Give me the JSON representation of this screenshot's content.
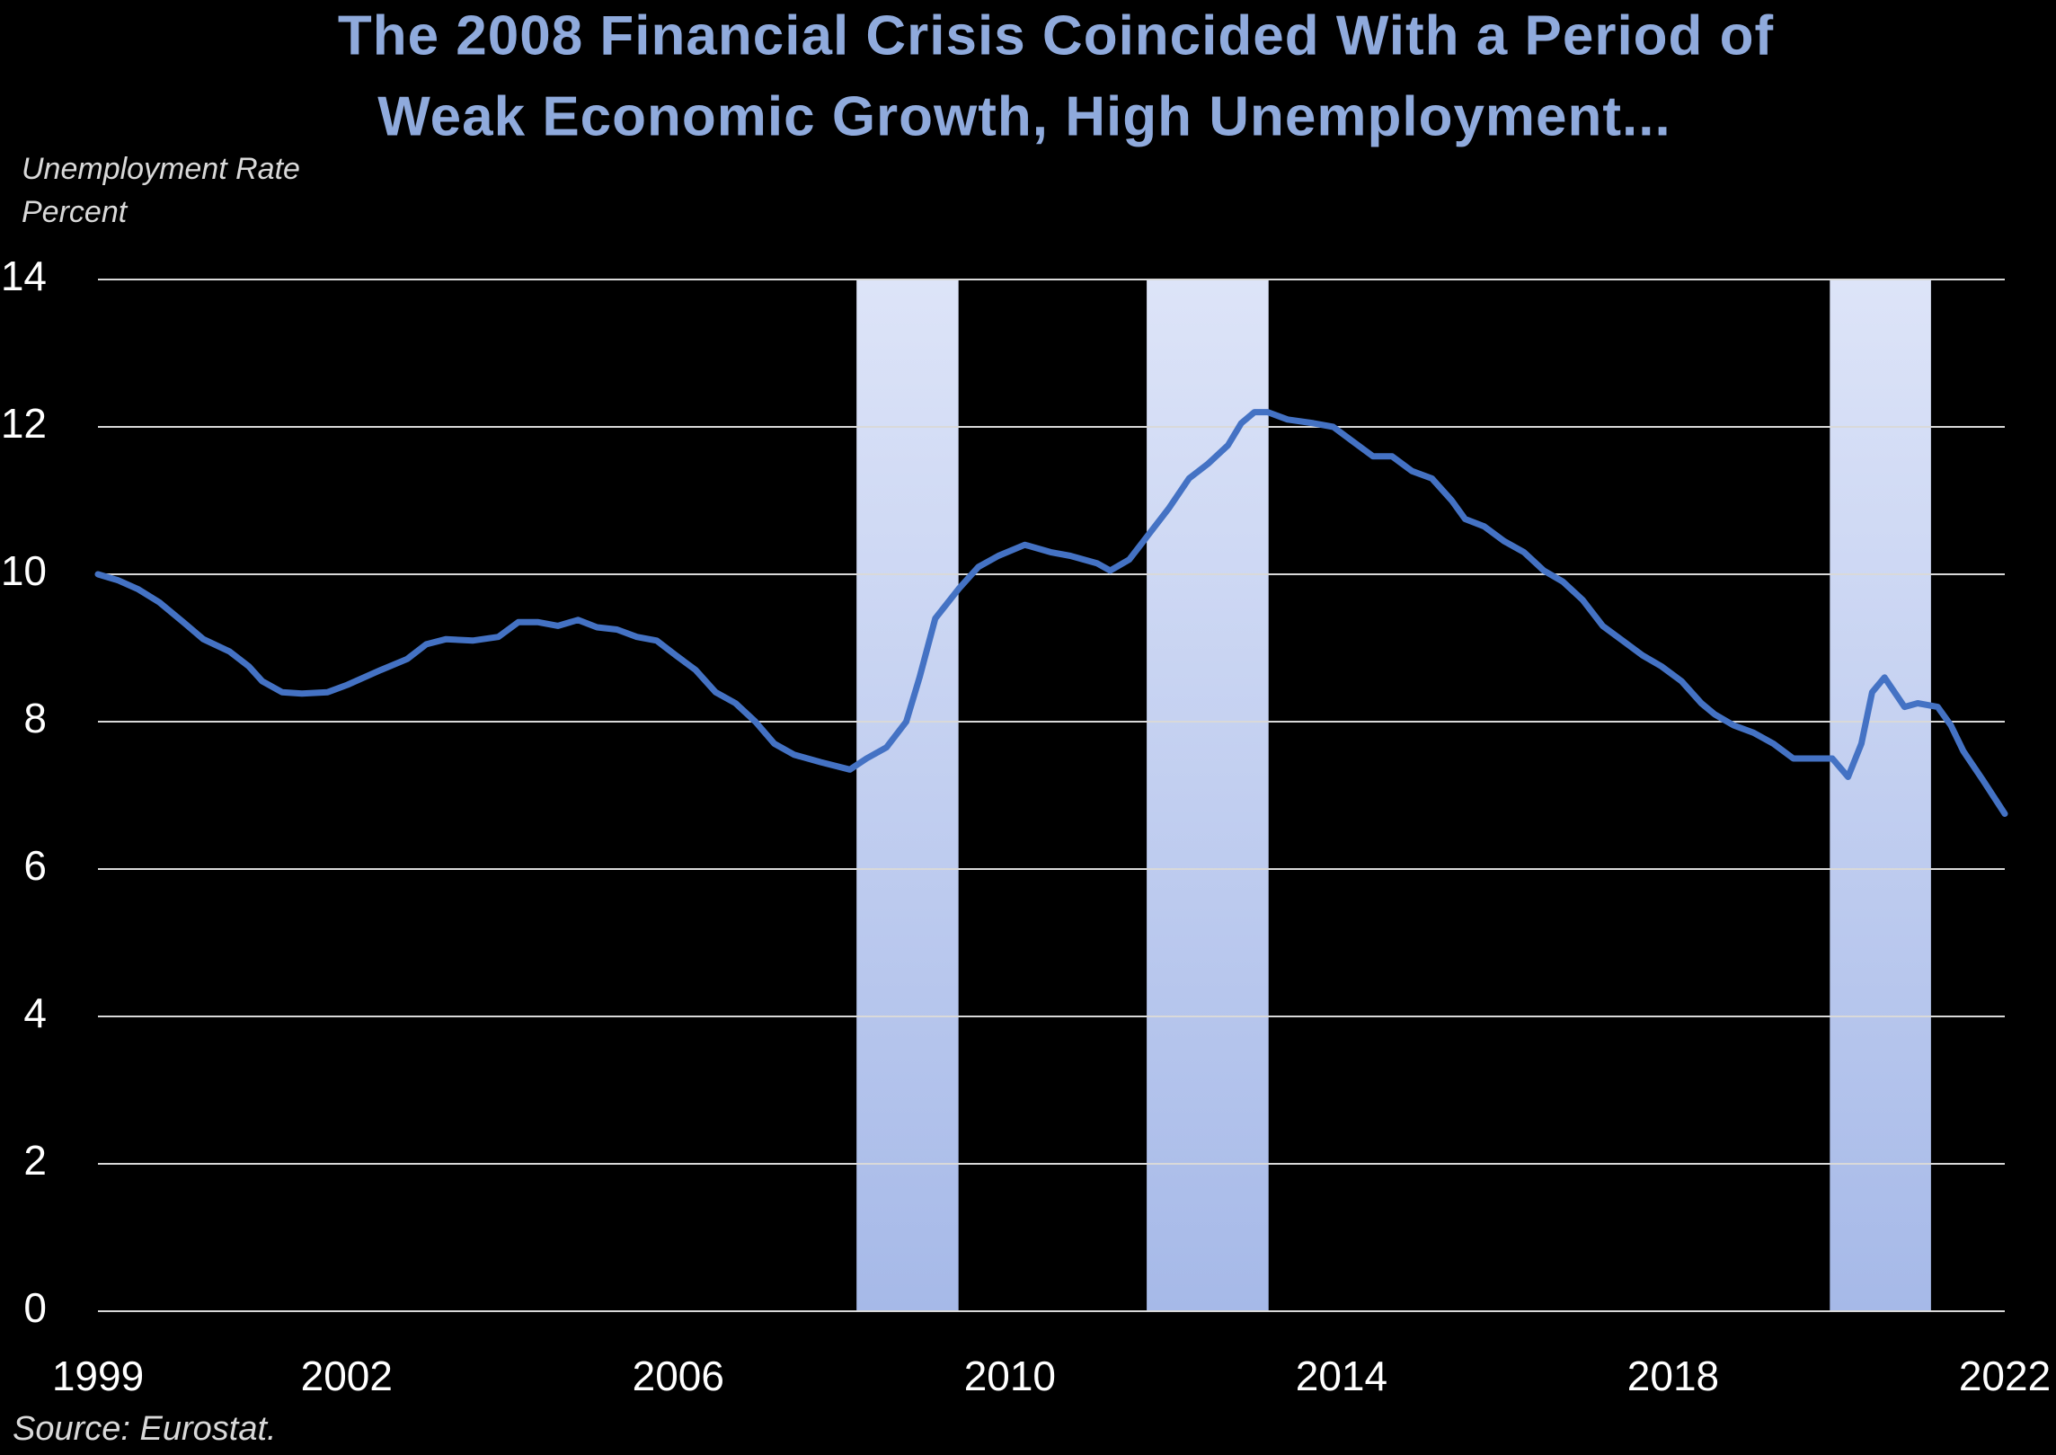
{
  "chart_data": {
    "type": "line",
    "title": [
      "The 2008 Financial Crisis Coincided With a Period of",
      "Weak Economic Growth, High Unemployment..."
    ],
    "y_label": [
      "Unemployment Rate",
      "Percent"
    ],
    "source": "Source: Eurostat.",
    "x": [
      1999.0,
      1999.24,
      1999.48,
      1999.74,
      2000.03,
      2000.27,
      2000.59,
      2000.82,
      2000.98,
      2001.22,
      2001.46,
      2001.77,
      2002.01,
      2002.41,
      2002.73,
      2002.96,
      2003.2,
      2003.52,
      2003.83,
      2004.07,
      2004.31,
      2004.55,
      2004.79,
      2005.02,
      2005.26,
      2005.5,
      2005.74,
      2005.97,
      2006.21,
      2006.45,
      2006.69,
      2006.93,
      2007.16,
      2007.4,
      2007.72,
      2008.07,
      2008.27,
      2008.51,
      2008.75,
      2008.91,
      2009.1,
      2009.38,
      2009.62,
      2009.86,
      2010.18,
      2010.49,
      2010.73,
      2011.05,
      2011.21,
      2011.44,
      2011.68,
      2011.92,
      2012.16,
      2012.39,
      2012.63,
      2012.79,
      2012.95,
      2013.11,
      2013.35,
      2013.66,
      2013.9,
      2014.14,
      2014.38,
      2014.61,
      2014.85,
      2015.09,
      2015.33,
      2015.49,
      2015.72,
      2015.96,
      2016.2,
      2016.44,
      2016.67,
      2016.91,
      2017.15,
      2017.39,
      2017.63,
      2017.86,
      2018.1,
      2018.34,
      2018.5,
      2018.73,
      2018.97,
      2019.21,
      2019.45,
      2019.69,
      2019.92,
      2020.11,
      2020.27,
      2020.4,
      2020.55,
      2020.79,
      2020.95,
      2021.19,
      2021.35,
      2021.5,
      2021.74,
      2022.0
    ],
    "series": [
      {
        "name": "Unemployment Rate",
        "color": "#4472c4",
        "values": [
          10.0,
          9.92,
          9.8,
          9.62,
          9.35,
          9.12,
          8.95,
          8.75,
          8.55,
          8.4,
          8.38,
          8.4,
          8.5,
          8.7,
          8.85,
          9.05,
          9.12,
          9.1,
          9.15,
          9.35,
          9.35,
          9.3,
          9.38,
          9.28,
          9.25,
          9.15,
          9.1,
          8.9,
          8.7,
          8.4,
          8.25,
          8.0,
          7.7,
          7.55,
          7.45,
          7.35,
          7.5,
          7.65,
          8.0,
          8.6,
          9.4,
          9.8,
          10.1,
          10.25,
          10.4,
          10.3,
          10.25,
          10.15,
          10.05,
          10.2,
          10.55,
          10.9,
          11.3,
          11.5,
          11.75,
          12.05,
          12.2,
          12.2,
          12.1,
          12.05,
          12.0,
          11.8,
          11.6,
          11.6,
          11.4,
          11.3,
          11.0,
          10.75,
          10.65,
          10.45,
          10.3,
          10.05,
          9.9,
          9.65,
          9.3,
          9.1,
          8.9,
          8.75,
          8.55,
          8.25,
          8.1,
          7.95,
          7.85,
          7.7,
          7.5,
          7.5,
          7.5,
          7.25,
          7.7,
          8.4,
          8.6,
          8.2,
          8.25,
          8.2,
          7.95,
          7.6,
          7.2,
          6.75
        ]
      }
    ],
    "shaded_periods": [
      [
        2008.15,
        2009.38
      ],
      [
        2011.65,
        2013.12
      ],
      [
        2019.89,
        2021.11
      ]
    ],
    "xlim": [
      1999,
      2022
    ],
    "xticks": [
      1999,
      2002,
      2006,
      2010,
      2014,
      2018,
      2022
    ],
    "ylim": [
      0,
      14
    ],
    "yticks": [
      0,
      2,
      4,
      6,
      8,
      10,
      12,
      14
    ],
    "grid": true
  }
}
